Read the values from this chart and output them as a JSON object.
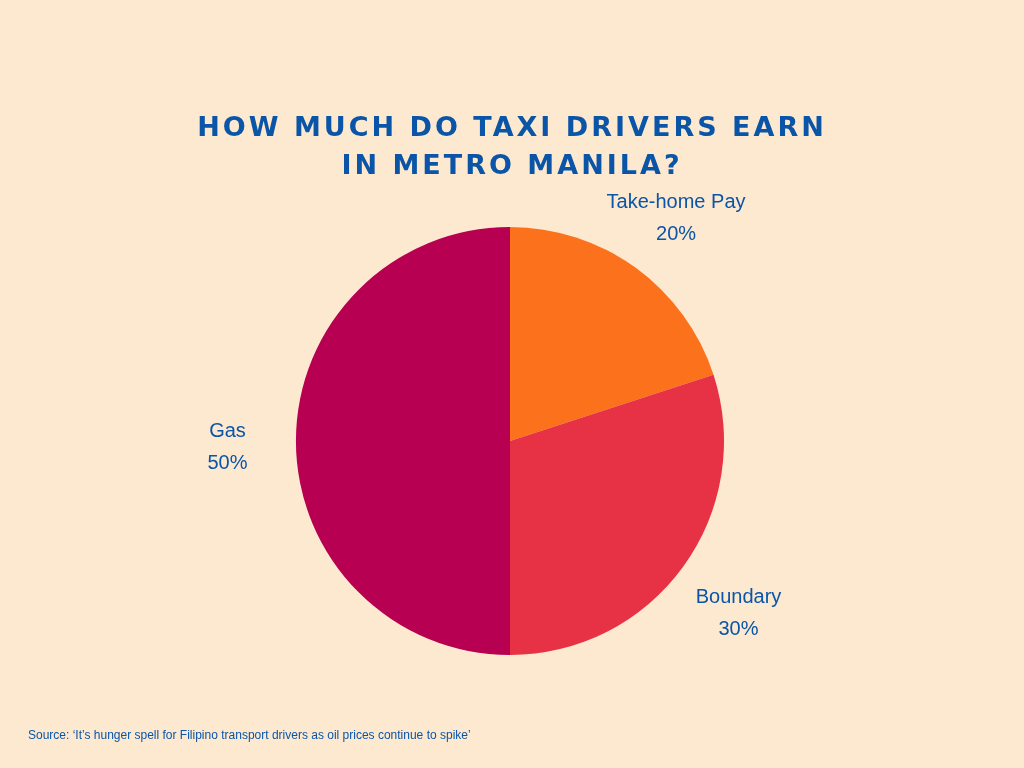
{
  "chart_data": {
    "type": "pie",
    "title": "HOW MUCH DO TAXI DRIVERS EARN IN METRO MANILA?",
    "categories": [
      "Take-home Pay",
      "Boundary",
      "Gas"
    ],
    "values": [
      20,
      30,
      50
    ],
    "colors": [
      "#fc711b",
      "#e63244",
      "#b80052"
    ],
    "value_labels": [
      "20%",
      "30%",
      "50%"
    ],
    "annotations": [
      "Source: ‘It’s hunger spell for Filipino transport drivers as oil prices continue to spike’"
    ]
  }
}
